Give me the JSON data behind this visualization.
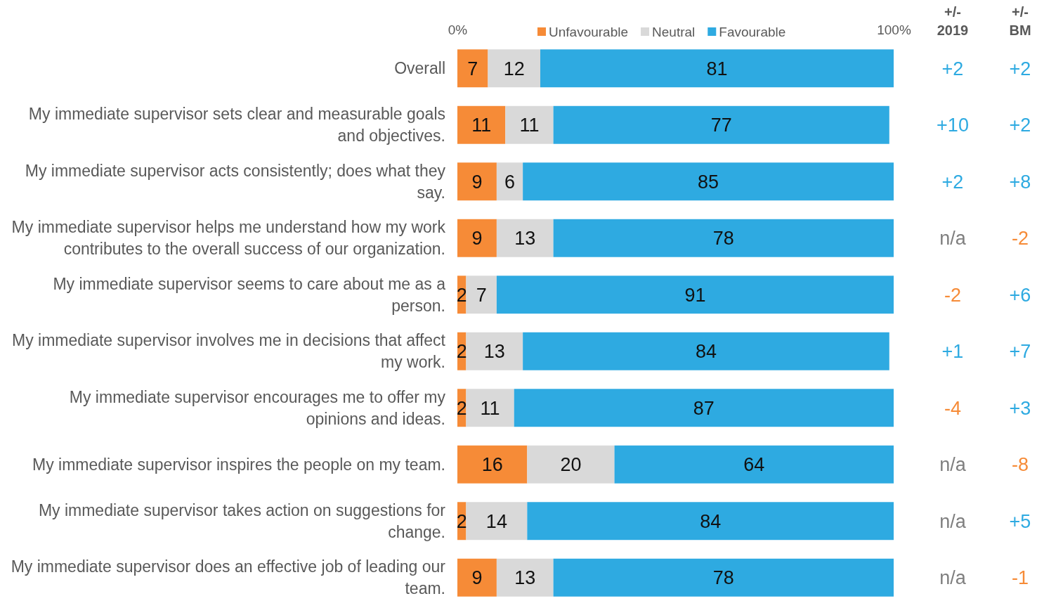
{
  "chart_data": [
    {
      "type": "bar",
      "orientation": "horizontal",
      "stacked": true,
      "data_labels": true,
      "legend": "top",
      "grid": false,
      "categories": [
        "Overall",
        "My immediate supervisor sets clear and measurable goals and objectives.",
        "My immediate supervisor acts consistently; does what they say.",
        "My immediate supervisor helps me understand how my work contributes to the overall success of our organization.",
        "My immediate supervisor seems to care about me as a person.",
        "My immediate supervisor involves me in decisions that affect my work.",
        "My immediate supervisor encourages me to offer my opinions and ideas.",
        "My immediate supervisor inspires the people on my team.",
        "My immediate supervisor takes action on suggestions for change.",
        "My immediate supervisor does an effective job of leading our team."
      ],
      "xlim": [
        0,
        100
      ],
      "xticks": [
        {
          "value": 0,
          "label": "0%"
        },
        {
          "value": 100,
          "label": "100%"
        }
      ],
      "series": [
        {
          "name": "Unfavourable",
          "color": "#f68b37",
          "values": [
            7,
            11,
            9,
            9,
            2,
            2,
            2,
            16,
            2,
            9
          ]
        },
        {
          "name": "Neutral",
          "color": "#d9d9d9",
          "values": [
            12,
            11,
            6,
            13,
            7,
            13,
            11,
            20,
            14,
            13
          ]
        },
        {
          "name": "Favourable",
          "color": "#2eaae1",
          "values": [
            81,
            77,
            85,
            78,
            91,
            84,
            87,
            64,
            84,
            78
          ]
        }
      ]
    },
    {
      "type": "other",
      "title": "+/- 2019",
      "annotations": [
        "+2",
        "+10",
        "+2",
        "n/a",
        "-2",
        "+1",
        "-4",
        "n/a",
        "n/a",
        "n/a"
      ],
      "colors": [
        "#2eaae1",
        "#2eaae1",
        "#2eaae1",
        "#7f7f7f",
        "#f68b37",
        "#2eaae1",
        "#f68b37",
        "#7f7f7f",
        "#7f7f7f",
        "#7f7f7f"
      ]
    },
    {
      "type": "other",
      "title": "+/- BM",
      "annotations": [
        "+2",
        "+2",
        "+8",
        "-2",
        "+6",
        "+7",
        "+3",
        "-8",
        "+5",
        "-1"
      ],
      "colors": [
        "#2eaae1",
        "#2eaae1",
        "#2eaae1",
        "#f68b37",
        "#2eaae1",
        "#2eaae1",
        "#2eaae1",
        "#f68b37",
        "#2eaae1",
        "#f68b37"
      ]
    }
  ]
}
